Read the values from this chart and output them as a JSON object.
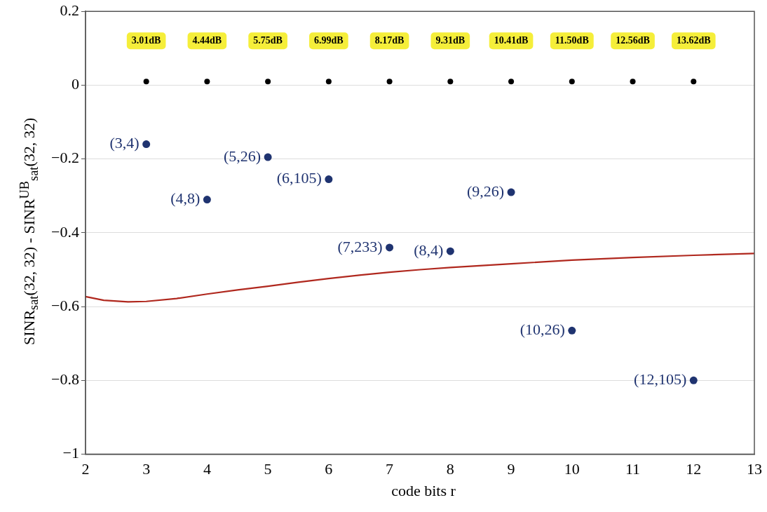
{
  "chart_data": {
    "type": "scatter",
    "xlabel": "code bits r",
    "ylabel": "SINR$_{sat}$(32, 32) - SINR$^{UB}$$_{sat}$(32, 32)",
    "xlim": [
      2,
      13
    ],
    "xticks": [
      2,
      3,
      4,
      5,
      6,
      7,
      8,
      9,
      10,
      11,
      12,
      13
    ],
    "ylim": [
      -1,
      0.2
    ],
    "yticks": [
      -1,
      -0.8,
      -0.6,
      -0.4,
      -0.2,
      0,
      0.2
    ],
    "grid": "y",
    "marker": "circle",
    "series": [
      {
        "color": "#000000",
        "x": [
          3,
          4,
          5,
          6,
          7,
          8,
          9,
          10,
          11,
          12
        ],
        "values": [
          0.01,
          0.01,
          0.01,
          0.01,
          0.01,
          0.01,
          0.01,
          0.01,
          0.01,
          0.01
        ]
      },
      {
        "color": "#1f3370",
        "x": [
          3,
          4,
          5,
          6,
          7,
          8,
          9,
          10,
          12
        ],
        "values": [
          -0.16,
          -0.31,
          -0.195,
          -0.255,
          -0.44,
          -0.45,
          -0.29,
          -0.665,
          -0.8
        ]
      },
      {
        "type": "line",
        "marker": "none",
        "line_style": "solid",
        "color": "#b0281e",
        "x": [
          2,
          2.3,
          2.7,
          3,
          3.5,
          4,
          4.5,
          5,
          5.5,
          6,
          6.5,
          7,
          7.5,
          8,
          9,
          10,
          11,
          12,
          13
        ],
        "values": [
          -0.573,
          -0.583,
          -0.587,
          -0.586,
          -0.578,
          -0.566,
          -0.555,
          -0.545,
          -0.534,
          -0.524,
          -0.515,
          -0.507,
          -0.5,
          -0.494,
          -0.484,
          -0.474,
          -0.467,
          -0.461,
          -0.456
        ]
      }
    ],
    "annotations": [
      "3.01dB",
      "4.44dB",
      "5.75dB",
      "6.99dB",
      "8.17dB",
      "9.31dB",
      "10.41dB",
      "11.50dB",
      "12.56dB",
      "13.62dB",
      {
        "text": "(3,4)",
        "x": 3,
        "y": -0.16
      },
      {
        "text": "(4,8)",
        "x": 4,
        "y": -0.31
      },
      {
        "text": "(5,26)",
        "x": 5,
        "y": -0.195
      },
      {
        "text": "(6,105)",
        "x": 6,
        "y": -0.255
      },
      {
        "text": "(7,233)",
        "x": 7,
        "y": -0.44
      },
      {
        "text": "(8,4)",
        "x": 8,
        "y": -0.45
      },
      {
        "text": "(9,26)",
        "x": 9,
        "y": -0.29
      },
      {
        "text": "(10,26)",
        "x": 10,
        "y": -0.665
      },
      {
        "text": "(12,105)",
        "x": 12,
        "y": -0.8
      }
    ]
  }
}
